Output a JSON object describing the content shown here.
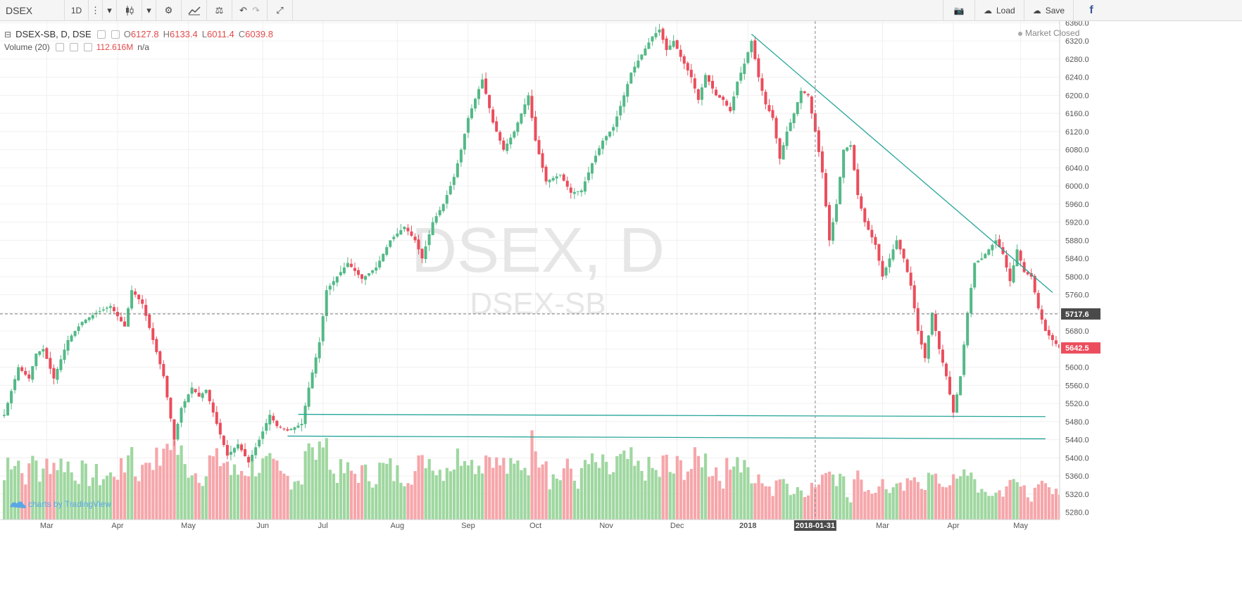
{
  "toolbar": {
    "symbol": "DSEX",
    "interval": "1D",
    "load_label": "Load",
    "save_label": "Save"
  },
  "legend": {
    "title": "DSEX-SB, D, DSE",
    "open_label": "O",
    "open": "6127.8",
    "high_label": "H",
    "high": "6133.4",
    "low_label": "L",
    "low": "6011.4",
    "close_label": "C",
    "close": "6039.8",
    "volume_label": "Volume (20)",
    "volume_value": "112.616M",
    "volume_ma": "n/a"
  },
  "status": "Market Closed",
  "watermark": {
    "main": "DSEX, D",
    "sub": "DSEX-SB"
  },
  "branding": "charts by TradingView",
  "chart_data": {
    "type": "candlestick",
    "symbol": "DSEX-SB",
    "y_axis_ticks": [
      5280,
      5320,
      5360,
      5400,
      5440,
      5480,
      5520,
      5560,
      5600,
      5640,
      5680,
      5720,
      5760,
      5800,
      5840,
      5880,
      5920,
      5960,
      6000,
      6040,
      6080,
      6120,
      6160,
      6200,
      6240,
      6280,
      6320,
      6360
    ],
    "ylim": [
      5270,
      6370
    ],
    "x_axis_labels": [
      {
        "label": "Mar",
        "i": 12
      },
      {
        "label": "Apr",
        "i": 32
      },
      {
        "label": "May",
        "i": 52
      },
      {
        "label": "Jun",
        "i": 73
      },
      {
        "label": "Jul",
        "i": 90
      },
      {
        "label": "Aug",
        "i": 111
      },
      {
        "label": "Sep",
        "i": 131
      },
      {
        "label": "Oct",
        "i": 150
      },
      {
        "label": "Nov",
        "i": 170
      },
      {
        "label": "Dec",
        "i": 190
      },
      {
        "label": "2018",
        "i": 210
      },
      {
        "label": "Mar",
        "i": 248
      },
      {
        "label": "Apr",
        "i": 268
      },
      {
        "label": "May",
        "i": 287
      }
    ],
    "crosshair": {
      "label": "2018-01-31",
      "i": 229
    },
    "last_price": 5642.5,
    "reference_price": 5717.6,
    "trend_lines": [
      {
        "from": {
          "i": 211,
          "price": 6335
        },
        "to": {
          "i": 296,
          "price": 5765
        }
      },
      {
        "from": {
          "i": 83,
          "price": 5496
        },
        "to": {
          "i": 294,
          "price": 5491
        }
      },
      {
        "from": {
          "i": 80,
          "price": 5448
        },
        "to": {
          "i": 294,
          "price": 5442
        }
      }
    ],
    "close_path": [
      [
        0,
        5495
      ],
      [
        4,
        5600
      ],
      [
        7,
        5575
      ],
      [
        9,
        5630
      ],
      [
        11,
        5640
      ],
      [
        14,
        5575
      ],
      [
        18,
        5660
      ],
      [
        22,
        5700
      ],
      [
        26,
        5720
      ],
      [
        30,
        5735
      ],
      [
        34,
        5690
      ],
      [
        36,
        5770
      ],
      [
        39,
        5740
      ],
      [
        42,
        5660
      ],
      [
        45,
        5580
      ],
      [
        48,
        5440
      ],
      [
        50,
        5510
      ],
      [
        53,
        5555
      ],
      [
        55,
        5535
      ],
      [
        57,
        5550
      ],
      [
        60,
        5475
      ],
      [
        63,
        5405
      ],
      [
        66,
        5430
      ],
      [
        69,
        5390
      ],
      [
        72,
        5440
      ],
      [
        75,
        5495
      ],
      [
        77,
        5470
      ],
      [
        80,
        5460
      ],
      [
        84,
        5475
      ],
      [
        86,
        5555
      ],
      [
        89,
        5655
      ],
      [
        91,
        5770
      ],
      [
        94,
        5800
      ],
      [
        97,
        5830
      ],
      [
        101,
        5795
      ],
      [
        105,
        5820
      ],
      [
        109,
        5880
      ],
      [
        113,
        5910
      ],
      [
        116,
        5880
      ],
      [
        118,
        5840
      ],
      [
        121,
        5920
      ],
      [
        124,
        5960
      ],
      [
        127,
        6020
      ],
      [
        129,
        6080
      ],
      [
        131,
        6150
      ],
      [
        135,
        6235
      ],
      [
        138,
        6140
      ],
      [
        141,
        6080
      ],
      [
        144,
        6120
      ],
      [
        148,
        6200
      ],
      [
        150,
        6100
      ],
      [
        153,
        6010
      ],
      [
        157,
        6025
      ],
      [
        160,
        5985
      ],
      [
        163,
        5990
      ],
      [
        166,
        6050
      ],
      [
        169,
        6100
      ],
      [
        172,
        6130
      ],
      [
        175,
        6200
      ],
      [
        177,
        6250
      ],
      [
        180,
        6290
      ],
      [
        183,
        6330
      ],
      [
        185,
        6345
      ],
      [
        187,
        6300
      ],
      [
        189,
        6320
      ],
      [
        191,
        6285
      ],
      [
        194,
        6240
      ],
      [
        196,
        6190
      ],
      [
        198,
        6245
      ],
      [
        201,
        6200
      ],
      [
        203,
        6190
      ],
      [
        205,
        6165
      ],
      [
        207,
        6230
      ],
      [
        209,
        6270
      ],
      [
        211,
        6320
      ],
      [
        213,
        6240
      ],
      [
        215,
        6180
      ],
      [
        217,
        6150
      ],
      [
        219,
        6060
      ],
      [
        221,
        6120
      ],
      [
        223,
        6160
      ],
      [
        225,
        6210
      ],
      [
        227,
        6200
      ],
      [
        229,
        6120
      ],
      [
        231,
        6030
      ],
      [
        233,
        5880
      ],
      [
        235,
        5960
      ],
      [
        237,
        6080
      ],
      [
        239,
        6090
      ],
      [
        241,
        5980
      ],
      [
        243,
        5920
      ],
      [
        246,
        5870
      ],
      [
        248,
        5800
      ],
      [
        250,
        5840
      ],
      [
        252,
        5880
      ],
      [
        254,
        5840
      ],
      [
        256,
        5780
      ],
      [
        258,
        5680
      ],
      [
        260,
        5620
      ],
      [
        262,
        5720
      ],
      [
        264,
        5640
      ],
      [
        266,
        5580
      ],
      [
        268,
        5500
      ],
      [
        270,
        5580
      ],
      [
        272,
        5720
      ],
      [
        274,
        5830
      ],
      [
        276,
        5840
      ],
      [
        278,
        5860
      ],
      [
        280,
        5880
      ],
      [
        282,
        5850
      ],
      [
        284,
        5790
      ],
      [
        286,
        5860
      ],
      [
        288,
        5810
      ],
      [
        290,
        5800
      ],
      [
        292,
        5730
      ],
      [
        294,
        5680
      ],
      [
        296,
        5660
      ],
      [
        298,
        5642.5
      ]
    ],
    "candles": 299,
    "volume_max": 160,
    "colors": {
      "up": "#53b987",
      "down": "#eb4d5c",
      "up_vol": "#9fd7a0",
      "down_vol": "#f6a6aa",
      "trend": "#26a69a",
      "last_price": "#eb4d5c",
      "reference": "#4a4a4a"
    }
  }
}
